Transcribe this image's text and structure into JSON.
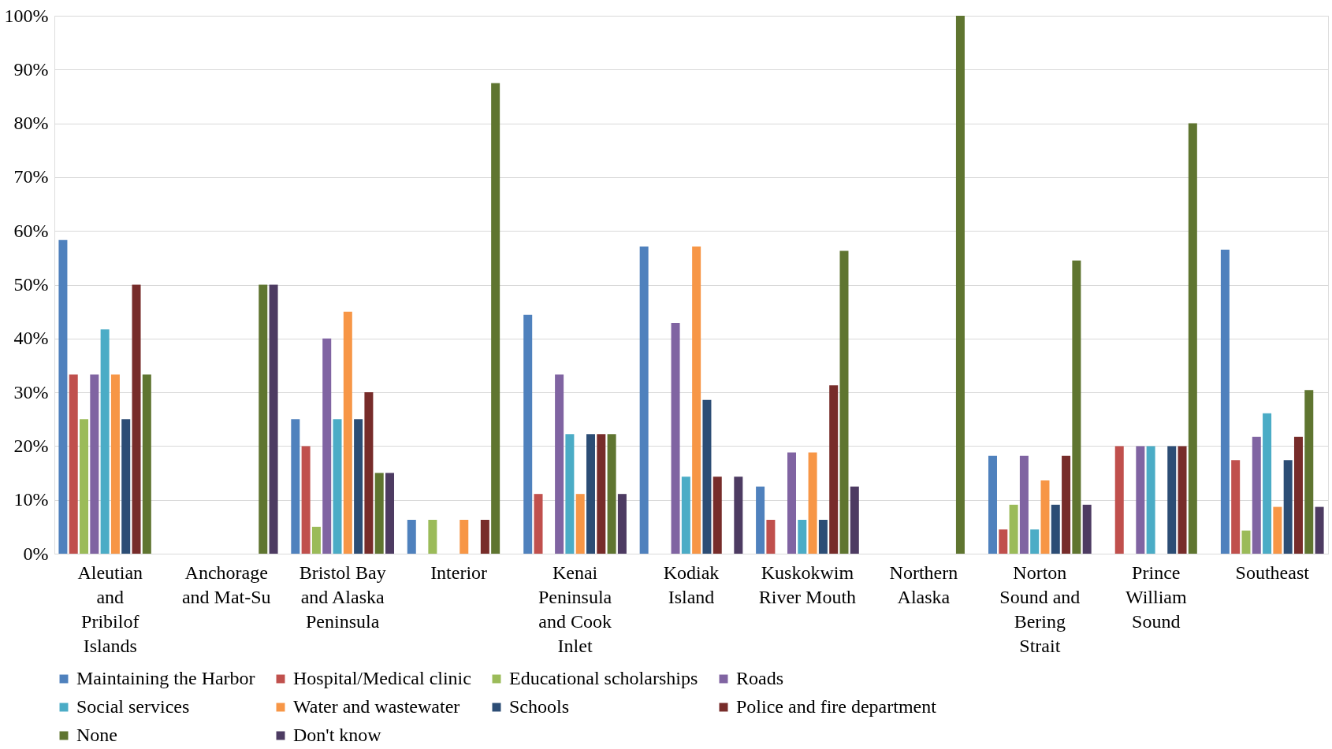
{
  "chart_data": {
    "type": "bar",
    "categories": [
      "Aleutian and Pribilof Islands",
      "Anchorage and Mat-Su",
      "Bristol Bay and Alaska Peninsula",
      "Interior",
      "Kenai Peninsula and Cook Inlet",
      "Kodiak Island",
      "Kuskokwim River Mouth",
      "Northern Alaska",
      "Norton Sound and Bering Strait",
      "Prince William Sound",
      "Southeast"
    ],
    "series": [
      {
        "name": "Maintaining the Harbor",
        "color": "#4f81bd",
        "values": [
          58.3,
          0,
          25,
          6.3,
          44.4,
          57.1,
          12.5,
          0,
          18.2,
          0,
          56.5
        ]
      },
      {
        "name": "Hospital/Medical clinic",
        "color": "#c0504d",
        "values": [
          33.3,
          0,
          20,
          0,
          11.1,
          0,
          6.3,
          0,
          4.5,
          20,
          17.4
        ]
      },
      {
        "name": "Educational scholarships",
        "color": "#9bbb59",
        "values": [
          25,
          0,
          5,
          6.3,
          0,
          0,
          0,
          0,
          9.1,
          0,
          4.3
        ]
      },
      {
        "name": "Roads",
        "color": "#8064a2",
        "values": [
          33.3,
          0,
          40,
          0,
          33.3,
          42.9,
          18.8,
          0,
          18.2,
          20,
          21.7
        ]
      },
      {
        "name": "Social services",
        "color": "#4bacc6",
        "values": [
          41.7,
          0,
          25,
          0,
          22.2,
          14.3,
          6.3,
          0,
          4.5,
          20,
          26.1
        ]
      },
      {
        "name": "Water and wastewater",
        "color": "#f79646",
        "values": [
          33.3,
          0,
          45,
          6.3,
          11.1,
          57.1,
          18.8,
          0,
          13.6,
          0,
          8.7
        ]
      },
      {
        "name": "Schools",
        "color": "#2c4d75",
        "values": [
          25,
          0,
          25,
          0,
          22.2,
          28.6,
          6.3,
          0,
          9.1,
          20,
          17.4
        ]
      },
      {
        "name": "Police and fire department",
        "color": "#772c2a",
        "values": [
          50,
          0,
          30,
          6.3,
          22.2,
          14.3,
          31.3,
          0,
          18.2,
          20,
          21.7
        ]
      },
      {
        "name": "None",
        "color": "#5f7530",
        "values": [
          33.3,
          50,
          15,
          87.5,
          22.2,
          0,
          56.3,
          100,
          54.5,
          80,
          30.4
        ]
      },
      {
        "name": "Don't know",
        "color": "#4d3b62",
        "values": [
          0,
          50,
          15,
          0,
          11.1,
          14.3,
          12.5,
          0,
          9.1,
          0,
          8.7
        ]
      }
    ],
    "ylim": [
      0,
      100
    ],
    "yticks": [
      {
        "value": 0,
        "label": "0%"
      },
      {
        "value": 10,
        "label": "10%"
      },
      {
        "value": 20,
        "label": "20%"
      },
      {
        "value": 30,
        "label": "30%"
      },
      {
        "value": 40,
        "label": "40%"
      },
      {
        "value": 50,
        "label": "50%"
      },
      {
        "value": 60,
        "label": "60%"
      },
      {
        "value": 70,
        "label": "70%"
      },
      {
        "value": 80,
        "label": "80%"
      },
      {
        "value": 90,
        "label": "90%"
      },
      {
        "value": 100,
        "label": "100%"
      }
    ],
    "grid": "y",
    "legend": "bottom"
  }
}
